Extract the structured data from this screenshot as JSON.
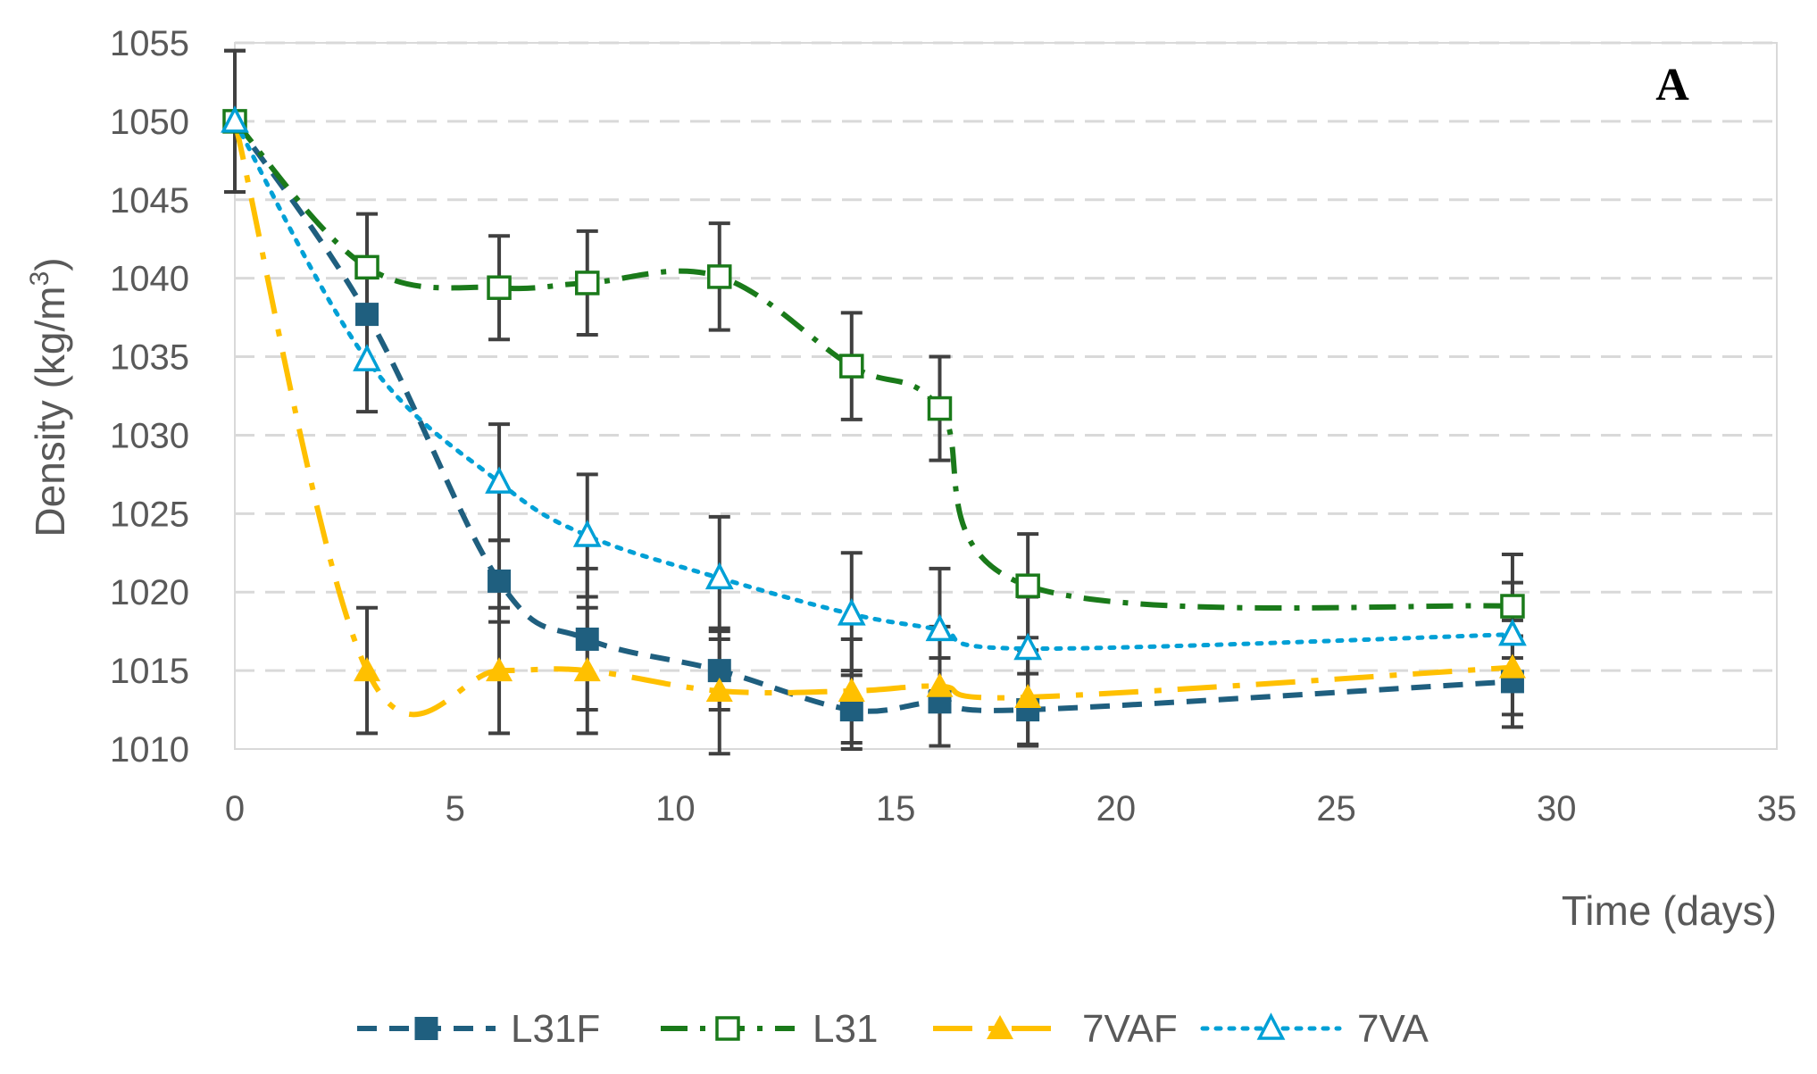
{
  "chart_data": {
    "type": "line",
    "title": "",
    "panel_label": "A",
    "xlabel": "Time (days)",
    "ylabel_prefix": "Density (kg/m",
    "ylabel_superscript": "3",
    "ylabel_suffix": ")",
    "xlim": [
      0,
      35
    ],
    "ylim": [
      1010,
      1055
    ],
    "xticks": [
      0,
      5,
      10,
      15,
      20,
      25,
      30,
      35
    ],
    "yticks": [
      1010,
      1015,
      1020,
      1025,
      1030,
      1035,
      1040,
      1045,
      1050,
      1055
    ],
    "grid": "horizontal-dashed",
    "legend_position": "bottom",
    "x": [
      0,
      3,
      6,
      8,
      11,
      14,
      16,
      18,
      29
    ],
    "series": [
      {
        "name": "L31F",
        "color": "#1f5f7f",
        "marker": "square-filled",
        "dash": "dashed",
        "values": [
          1050,
          1037.7,
          1020.7,
          1017.0,
          1015.0,
          1012.5,
          1013.0,
          1012.5,
          1014.3
        ],
        "errors": [
          4.5,
          3.3,
          2.6,
          4.5,
          2.5,
          2.5,
          2.8,
          2.3,
          2.9
        ]
      },
      {
        "name": "L31",
        "color": "#1a7a1a",
        "marker": "square-open",
        "dash": "dash-dot",
        "values": [
          1050,
          1040.7,
          1039.4,
          1039.7,
          1040.1,
          1034.4,
          1031.7,
          1020.4,
          1019.1
        ],
        "errors": [
          4.5,
          3.4,
          3.3,
          3.3,
          3.4,
          3.4,
          3.3,
          3.3,
          3.3
        ]
      },
      {
        "name": "7VAF",
        "color": "#ffc000",
        "marker": "triangle-filled",
        "dash": "long-dash-dot",
        "values": [
          1050,
          1015.0,
          1015.0,
          1015.0,
          1013.7,
          1013.7,
          1014.0,
          1013.3,
          1015.2
        ],
        "errors": [
          0,
          4.0,
          4.0,
          4.0,
          4.0,
          3.3,
          3.8,
          3.0,
          3.0
        ]
      },
      {
        "name": "7VA",
        "color": "#00a0d6",
        "marker": "triangle-open",
        "dash": "dotted",
        "values": [
          1050,
          1034.8,
          1027.0,
          1023.6,
          1020.9,
          1018.6,
          1017.6,
          1016.4,
          1017.3
        ],
        "errors": [
          0,
          3.3,
          3.7,
          3.9,
          3.9,
          3.9,
          3.9,
          3.3,
          3.3
        ]
      }
    ]
  }
}
